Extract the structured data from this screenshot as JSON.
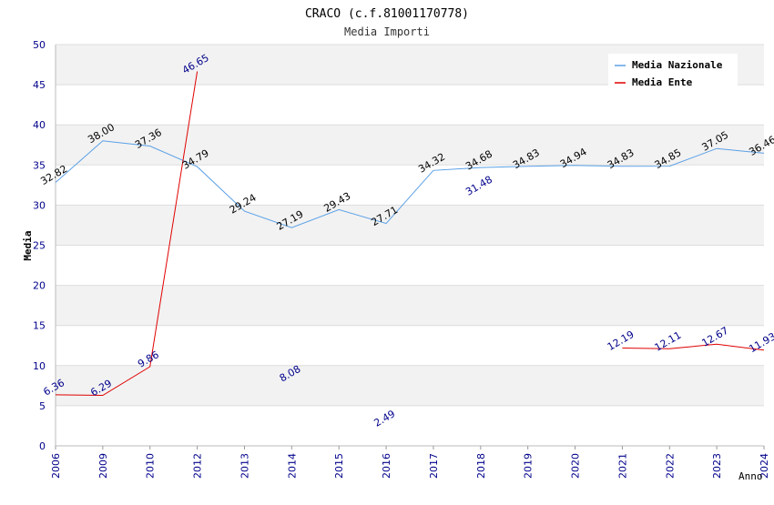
{
  "chart_data": {
    "type": "line",
    "title": "CRACO (c.f.81001170778)",
    "subtitle": "Media Importi",
    "xlabel": "Anno",
    "ylabel": "Media",
    "ylim": [
      0,
      50
    ],
    "yticks": [
      "0",
      "5",
      "10",
      "15",
      "20",
      "25",
      "30",
      "35",
      "40",
      "45",
      "50"
    ],
    "categories": [
      "2006",
      "2009",
      "2010",
      "2012",
      "2013",
      "2014",
      "2015",
      "2016",
      "2017",
      "2018",
      "2019",
      "2020",
      "2021",
      "2022",
      "2023",
      "2024"
    ],
    "legend_position": "top-right",
    "series": [
      {
        "name": "Media Nazionale",
        "color": "#5aa0e6",
        "values": [
          32.82,
          38.0,
          37.36,
          34.79,
          29.24,
          27.19,
          29.43,
          27.71,
          34.32,
          34.68,
          34.83,
          34.94,
          34.83,
          34.85,
          37.05,
          36.46
        ],
        "labels": [
          "32.82",
          "38.00",
          "37.36",
          "34.79",
          "29.24",
          "27.19",
          "29.43",
          "27.71",
          "34.32",
          "34.68",
          "34.83",
          "34.94",
          "34.83",
          "34.85",
          "37.05",
          "36.46"
        ]
      },
      {
        "name": "Media Ente",
        "color": "#e00000",
        "values": [
          6.36,
          6.29,
          9.86,
          46.65,
          null,
          8.08,
          null,
          2.49,
          null,
          31.48,
          null,
          null,
          12.19,
          12.11,
          12.67,
          11.93
        ],
        "labels": [
          "6.36",
          "6.29",
          "9.86",
          "46.65",
          null,
          "8.08",
          null,
          "2.49",
          null,
          "31.48",
          null,
          null,
          "12.19",
          "12.11",
          "12.67",
          "11.93"
        ]
      }
    ]
  }
}
